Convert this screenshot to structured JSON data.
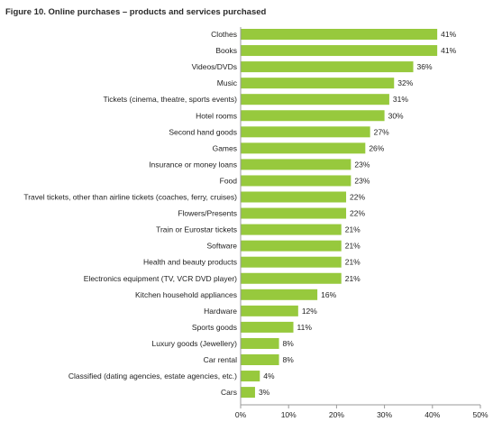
{
  "title": "Figure 10. Online purchases – products and services purchased",
  "colors": {
    "bar": "#97c93d",
    "axis": "#9a9a9a"
  },
  "chart_data": {
    "type": "bar",
    "orientation": "horizontal",
    "categories": [
      "Clothes",
      "Books",
      "Videos/DVDs",
      "Music",
      "Tickets (cinema, theatre, sports events)",
      "Hotel rooms",
      "Second hand goods",
      "Games",
      "Insurance or money loans",
      "Food",
      "Travel tickets, other than airline tickets (coaches, ferry, cruises)",
      "Flowers/Presents",
      "Train or Eurostar tickets",
      "Software",
      "Health and beauty products",
      "Electronics equipment (TV, VCR DVD player)",
      "Kitchen household appliances",
      "Hardware",
      "Sports goods",
      "Luxury goods (Jewellery)",
      "Car rental",
      "Classified (dating agencies, estate agencies, etc.)",
      "Cars"
    ],
    "values": [
      41,
      41,
      36,
      32,
      31,
      30,
      27,
      26,
      23,
      23,
      22,
      22,
      21,
      21,
      21,
      21,
      16,
      12,
      11,
      8,
      8,
      4,
      3
    ],
    "value_labels": [
      "41%",
      "41%",
      "36%",
      "32%",
      "31%",
      "30%",
      "27%",
      "26%",
      "23%",
      "23%",
      "22%",
      "22%",
      "21%",
      "21%",
      "21%",
      "21%",
      "16%",
      "12%",
      "11%",
      "8%",
      "8%",
      "4%",
      "3%"
    ],
    "xticks": [
      "0%",
      "10%",
      "20%",
      "30%",
      "40%",
      "50%"
    ],
    "xlim": [
      0,
      50
    ],
    "grid": false,
    "legend": "none"
  }
}
